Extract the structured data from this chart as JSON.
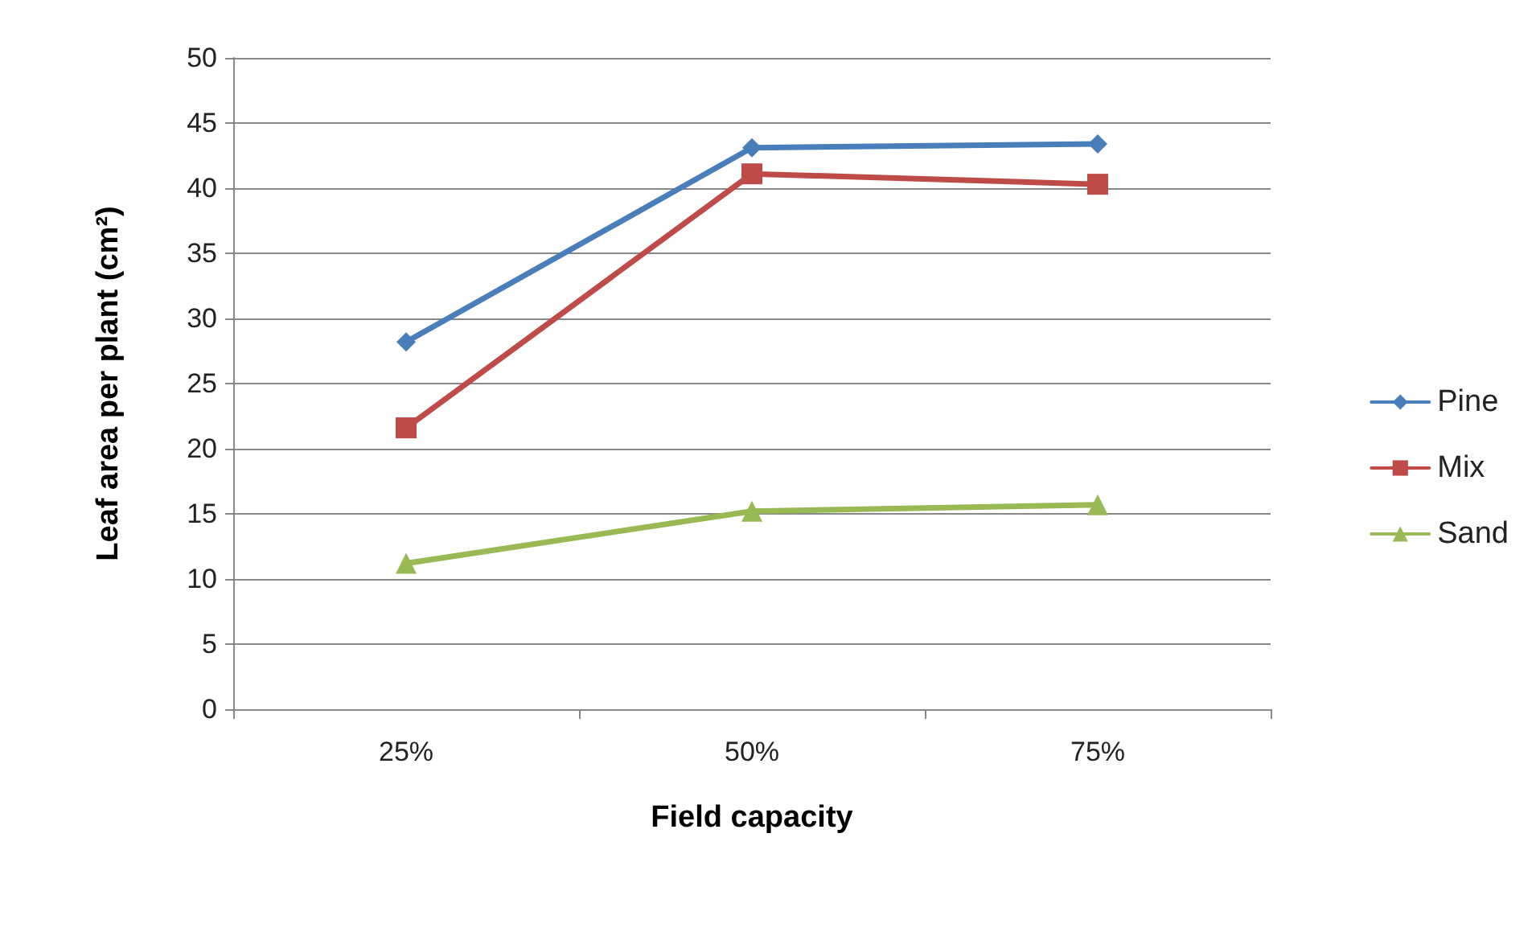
{
  "chart_data": {
    "type": "line",
    "xlabel": "Field capacity",
    "ylabel": "Leaf area per plant (cm²)",
    "categories": [
      "25%",
      "50%",
      "75%"
    ],
    "series": [
      {
        "name": "Pine",
        "color": "#4a7ebb",
        "marker": "diamond",
        "values": [
          28.2,
          43.1,
          43.4
        ]
      },
      {
        "name": "Mix",
        "color": "#be4b48",
        "marker": "square",
        "values": [
          21.6,
          41.1,
          40.3
        ]
      },
      {
        "name": "Sand",
        "color": "#98b954",
        "marker": "triangle",
        "values": [
          11.2,
          15.2,
          15.7
        ]
      }
    ],
    "ylim": [
      0,
      50
    ],
    "yticks": [
      0,
      5,
      10,
      15,
      20,
      25,
      30,
      35,
      40,
      45,
      50
    ],
    "grid": "y",
    "legend": "right",
    "line_style": "solid"
  }
}
